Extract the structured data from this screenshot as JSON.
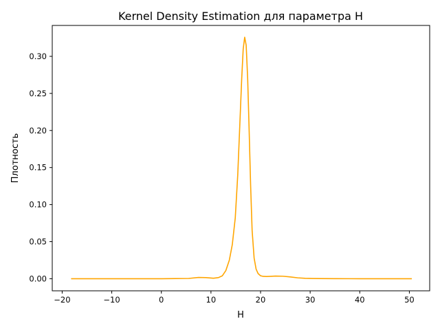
{
  "chart_data": {
    "type": "line",
    "title": "Kernel Density Estimation для параметра H",
    "xlabel": "H",
    "ylabel": "Плотность",
    "xlim": [
      -22.0,
      54.1
    ],
    "ylim": [
      -0.0163,
      0.3417
    ],
    "xticks": [
      -20,
      -10,
      0,
      10,
      20,
      30,
      40,
      50
    ],
    "xtick_labels": [
      "−20",
      "−10",
      "0",
      "10",
      "20",
      "30",
      "40",
      "50"
    ],
    "yticks": [
      0.0,
      0.05,
      0.1,
      0.15,
      0.2,
      0.25,
      0.3
    ],
    "ytick_labels": [
      "0.00",
      "0.05",
      "0.10",
      "0.15",
      "0.20",
      "0.25",
      "0.30"
    ],
    "grid": false,
    "legend": "none",
    "series": [
      {
        "color": "#ffa500",
        "x": [
          -18.2,
          -10,
          0,
          5.5,
          7.5,
          9,
          10.5,
          11.5,
          12.3,
          13,
          13.7,
          14.3,
          14.9,
          15.4,
          15.8,
          16.2,
          16.5,
          16.8,
          17.1,
          17.4,
          17.7,
          18.0,
          18.3,
          18.7,
          19.1,
          19.5,
          20.0,
          20.5,
          21.2,
          22.0,
          23.0,
          24.5,
          26.0,
          27.5,
          29.0,
          30.5,
          32.0,
          35.0,
          40.0,
          45.0,
          50.5
        ],
        "y": [
          0.0,
          0.0,
          0.0,
          0.0004,
          0.0017,
          0.0015,
          0.0007,
          0.0015,
          0.004,
          0.011,
          0.025,
          0.046,
          0.082,
          0.14,
          0.205,
          0.27,
          0.31,
          0.3258,
          0.315,
          0.27,
          0.2,
          0.125,
          0.065,
          0.028,
          0.013,
          0.007,
          0.004,
          0.0032,
          0.003,
          0.0032,
          0.0036,
          0.0034,
          0.0024,
          0.0012,
          0.0006,
          0.0003,
          0.0002,
          0.0001,
          0.0,
          0.0,
          0.0
        ]
      }
    ]
  }
}
